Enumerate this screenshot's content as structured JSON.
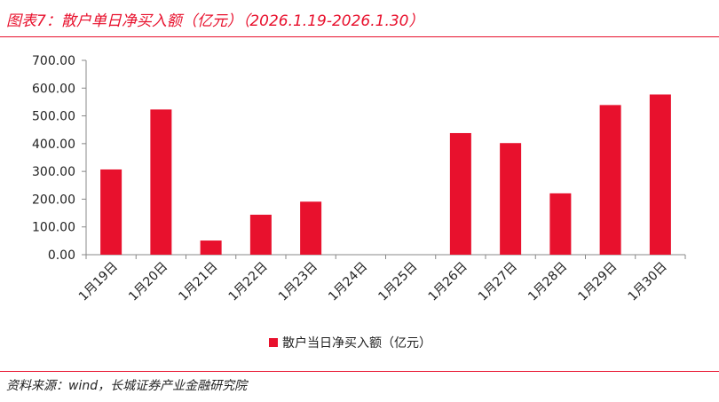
{
  "title": "图表7：散户单日净买入额（亿元）（2026.1.19-2026.1.30）",
  "source": "资料来源：wind，长城证券产业金融研究院",
  "colors": {
    "accent": "#e8112d",
    "bar": "#e8112d",
    "axis": "#888888",
    "text": "#222222"
  },
  "chart_data": {
    "type": "bar",
    "categories": [
      "1月19日",
      "1月20日",
      "1月21日",
      "1月22日",
      "1月23日",
      "1月24日",
      "1月25日",
      "1月26日",
      "1月27日",
      "1月28日",
      "1月29日",
      "1月30日"
    ],
    "series": [
      {
        "name": "散户当日净买入额（亿元）",
        "values": [
          307,
          523,
          51,
          144,
          191,
          0,
          0,
          438,
          402,
          221,
          539,
          577
        ]
      }
    ],
    "ylim": [
      0,
      700
    ],
    "yticks": [
      "0.00",
      "100.00",
      "200.00",
      "300.00",
      "400.00",
      "500.00",
      "600.00",
      "700.00"
    ],
    "grid": false,
    "legend_position": "bottom"
  }
}
